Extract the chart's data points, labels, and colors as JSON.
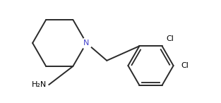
{
  "background_color": "#ffffff",
  "line_color": "#2a2a2a",
  "text_color": "#000000",
  "blue_color": "#4444cc",
  "line_width": 1.4,
  "figsize": [
    3.13,
    1.46
  ],
  "dpi": 100,
  "N_label": "N",
  "Cl1_label": "Cl",
  "Cl2_label": "Cl",
  "H2N_label": "H₂N",
  "xlim": [
    0.0,
    7.8
  ],
  "ylim": [
    0.0,
    3.6
  ]
}
